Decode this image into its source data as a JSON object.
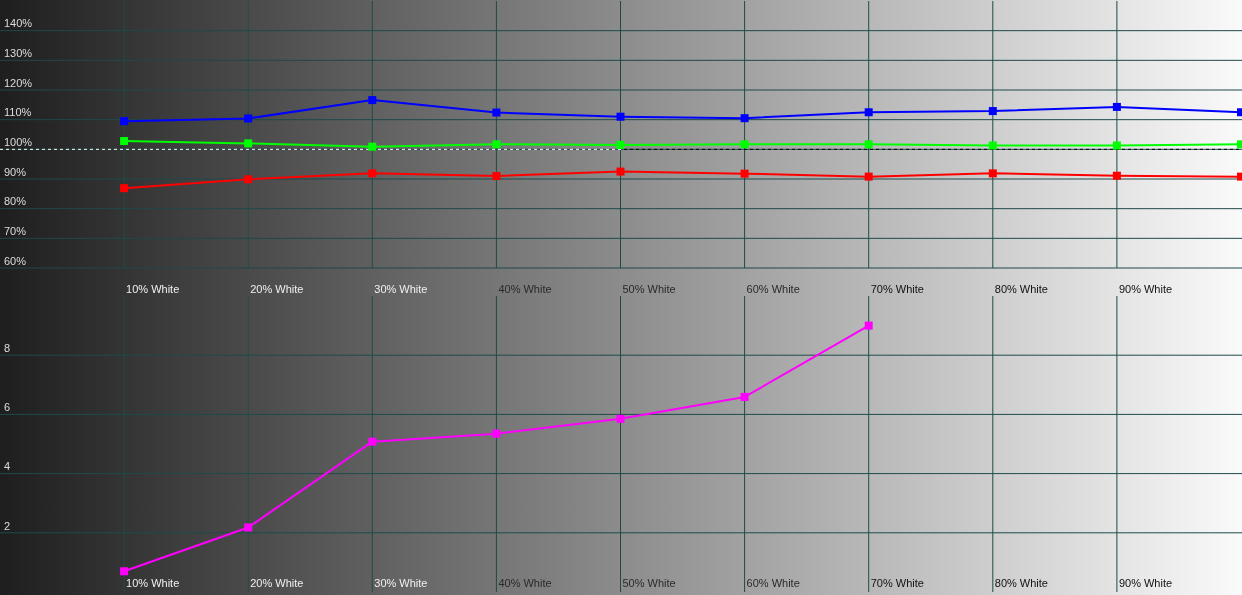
{
  "chart_data": [
    {
      "type": "line",
      "categories": [
        null,
        "10% White",
        "20% White",
        "30% White",
        "40% White",
        "50% White",
        "60% White",
        "70% White",
        "80% White",
        "90% White",
        null
      ],
      "ylim": [
        60,
        150
      ],
      "yticks": [
        {
          "value": 60,
          "label": "60%"
        },
        {
          "value": 70,
          "label": "70%"
        },
        {
          "value": 80,
          "label": "80%"
        },
        {
          "value": 90,
          "label": "90%"
        },
        {
          "value": 100,
          "label": "100%"
        },
        {
          "value": 110,
          "label": "110%"
        },
        {
          "value": 120,
          "label": "120%"
        },
        {
          "value": 130,
          "label": "130%"
        },
        {
          "value": 140,
          "label": "140%"
        }
      ],
      "grid": true,
      "marker": "square",
      "line_style": "solid",
      "ref_lines": [
        {
          "axis": "y",
          "value": 100,
          "line_style": "dashed"
        }
      ],
      "series": [
        {
          "color": "#0000ff",
          "values": [
            null,
            109.5,
            110.4,
            116.6,
            112.4,
            111,
            110.5,
            112.5,
            112.9,
            114.3,
            112.5
          ]
        },
        {
          "color": "#00ff00",
          "values": [
            null,
            102.8,
            102,
            100.9,
            101.7,
            101.5,
            101.7,
            101.7,
            101.3,
            101.3,
            101.7
          ]
        },
        {
          "color": "#ff0000",
          "values": [
            null,
            86.9,
            89.9,
            91.9,
            91,
            92.5,
            91.8,
            90.8,
            91.9,
            91.1,
            90.8
          ]
        }
      ]
    },
    {
      "type": "line",
      "categories": [
        null,
        "10% White",
        "20% White",
        "30% White",
        "40% White",
        "50% White",
        "60% White",
        "70% White",
        "80% White",
        "90% White",
        null
      ],
      "ylim": [
        0,
        10
      ],
      "yticks": [
        2,
        4,
        6,
        8
      ],
      "grid": true,
      "marker": "square",
      "line_style": "solid",
      "series": [
        {
          "color": "#ff00ff",
          "values": [
            null,
            0.7,
            2.18,
            5.08,
            5.35,
            5.85,
            6.59,
            9.0,
            null,
            null,
            null
          ]
        }
      ]
    }
  ]
}
